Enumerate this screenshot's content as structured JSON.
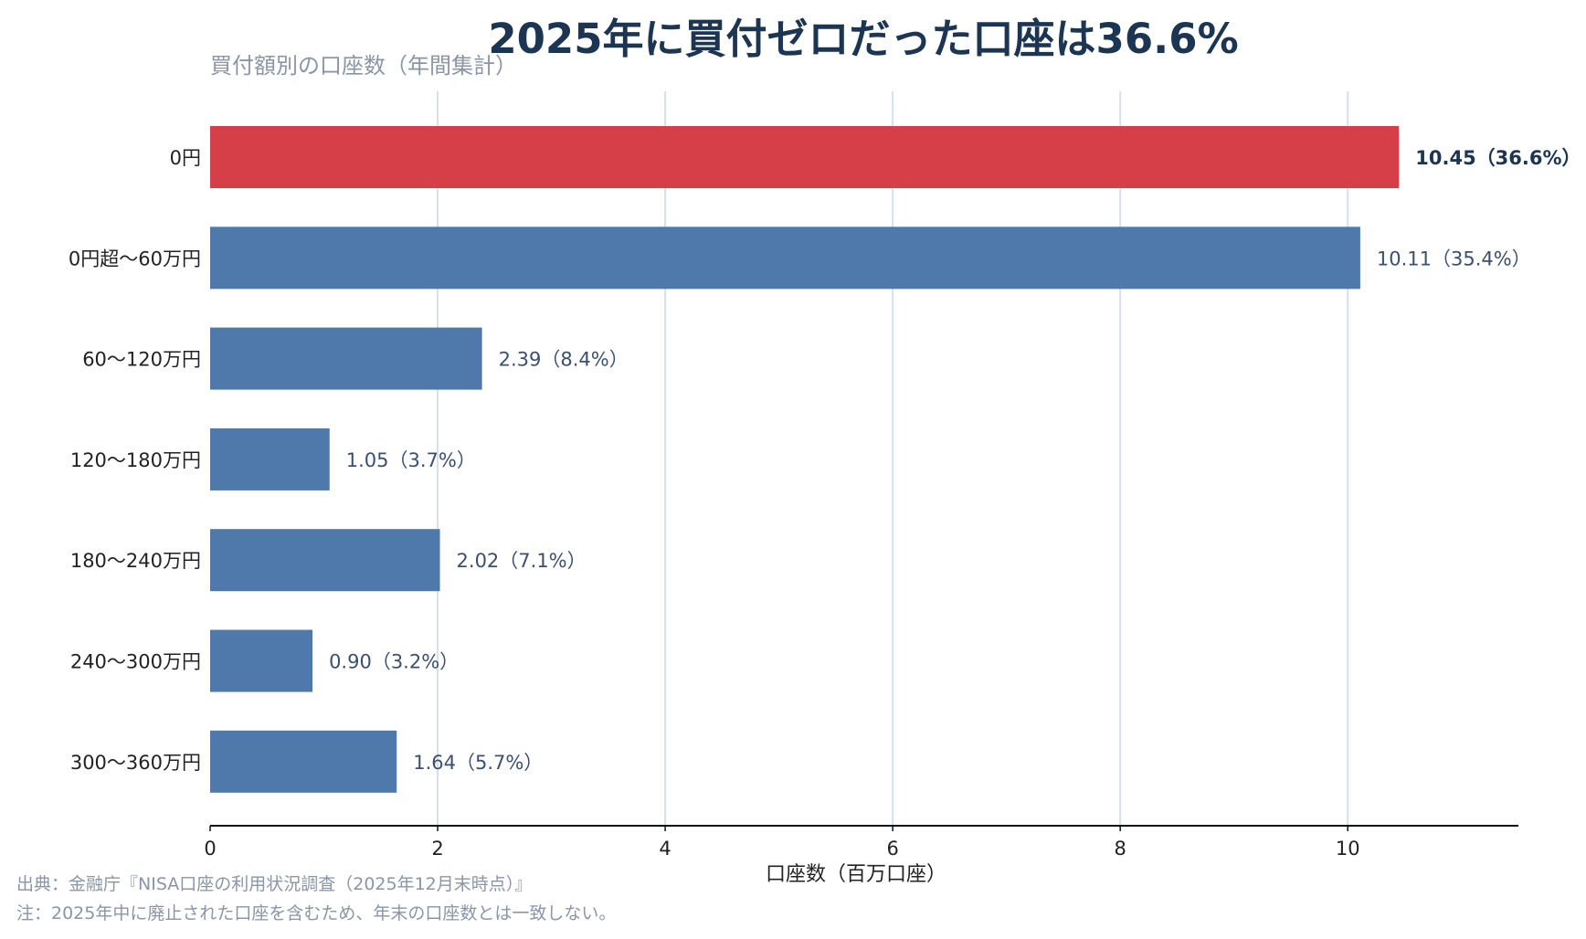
{
  "chart_data": {
    "type": "bar",
    "orientation": "horizontal",
    "title": "2025年に買付ゼロだった口座は36.6%",
    "subtitle": "買付額別の口座数（年間集計）",
    "xlabel": "口座数（百万口座）",
    "ylabel": "",
    "xlim": [
      0,
      11.5
    ],
    "xticks": [
      0,
      2,
      4,
      6,
      8,
      10
    ],
    "grid": "vertical",
    "categories": [
      "0円",
      "0円超〜60万円",
      "60〜120万円",
      "120〜180万円",
      "180〜240万円",
      "240〜300万円",
      "300〜360万円"
    ],
    "values": [
      10.45,
      10.11,
      2.39,
      1.05,
      2.02,
      0.9,
      1.64
    ],
    "data_labels": [
      "10.45（36.6%）",
      "10.11（35.4%）",
      "2.39（8.4%）",
      "1.05（3.7%）",
      "2.02（7.1%）",
      "0.90（3.2%）",
      "1.64（5.7%）"
    ],
    "highlight_index": 0,
    "colors": {
      "highlight": "#d63f47",
      "bar": "#4e79aa",
      "grid": "#d5e0ec",
      "axis": "#111111",
      "title": "#1b3552",
      "muted": "#8a96a6",
      "value_label": "#3b5070"
    }
  },
  "notes": {
    "source": "出典：金融庁『NISA口座の利用状況調査（2025年12月末時点）』",
    "remark": "注：2025年中に廃止された口座を含むため、年末の口座数とは一致しない。"
  }
}
